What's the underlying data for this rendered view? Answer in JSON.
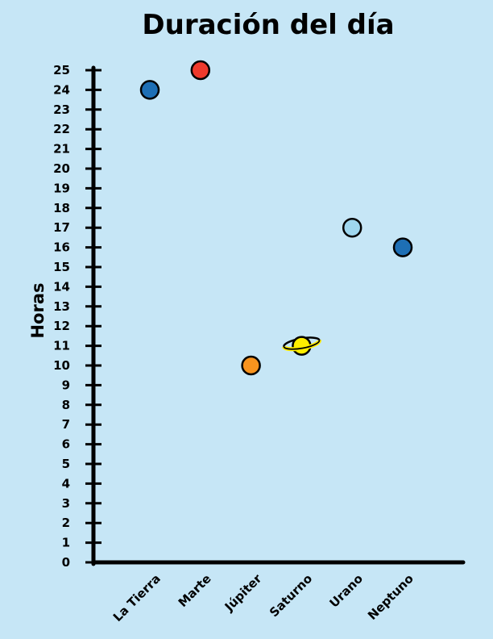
{
  "chart_data": {
    "type": "scatter",
    "title": "Duración del día",
    "ylabel": "Horas",
    "xlabel": "",
    "ylim": [
      0,
      25
    ],
    "yticks": [
      0,
      1,
      2,
      3,
      4,
      5,
      6,
      7,
      8,
      9,
      10,
      11,
      12,
      13,
      14,
      15,
      16,
      17,
      18,
      19,
      20,
      21,
      22,
      23,
      24,
      25
    ],
    "grid": false,
    "categories": [
      "La Tierra",
      "Marte",
      "Júpiter",
      "Saturno",
      "Urano",
      "Neptuno"
    ],
    "values": [
      24,
      25,
      10,
      11,
      17,
      16
    ],
    "point_colors": [
      "#1e6fb5",
      "#ee3a2c",
      "#f7931e",
      "#ffee00",
      "#9fd7ef",
      "#1e6fb5"
    ],
    "point_icons": [
      "planet-dot",
      "planet-dot",
      "planet-dot",
      "ringed-planet",
      "planet-dot",
      "planet-dot"
    ]
  }
}
